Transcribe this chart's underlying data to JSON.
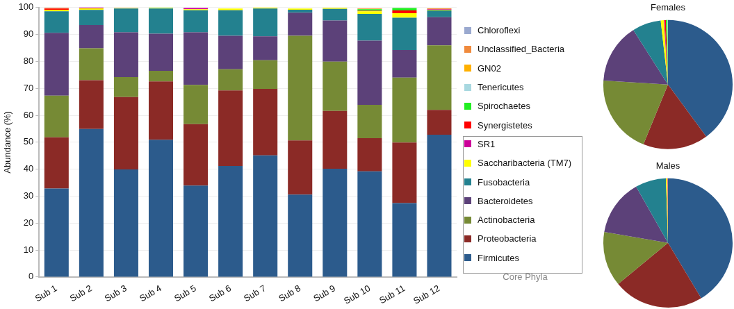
{
  "chart_data": [
    {
      "type": "bar",
      "stacked": true,
      "ylabel": "Abundance (%)",
      "legend_title": "Core Phyla",
      "legend": "right",
      "grid": "y",
      "ylim": [
        0,
        100
      ],
      "yticks": [
        0,
        10,
        20,
        30,
        40,
        50,
        60,
        70,
        80,
        90,
        100
      ],
      "categories": [
        "Sub 1",
        "Sub 2",
        "Sub 3",
        "Sub 4",
        "Sub 5",
        "Sub 6",
        "Sub 7",
        "Sub 8",
        "Sub 9",
        "Sub 10",
        "Sub 11",
        "Sub 12"
      ],
      "series": [
        {
          "name": "Firmicutes",
          "color": "#2c5b8c",
          "values": [
            32.8,
            54.9,
            39.9,
            50.9,
            33.9,
            41.2,
            45.1,
            30.6,
            40.2,
            39.2,
            27.4,
            52.8
          ]
        },
        {
          "name": "Proteobacteria",
          "color": "#8b2a26",
          "values": [
            19.0,
            18.1,
            26.9,
            21.7,
            22.8,
            28.0,
            24.7,
            20.1,
            21.4,
            12.3,
            22.5,
            9.2
          ]
        },
        {
          "name": "Actinobacteria",
          "color": "#768a35",
          "values": [
            15.5,
            11.9,
            7.4,
            3.9,
            14.6,
            7.9,
            10.6,
            38.8,
            18.3,
            12.4,
            24.1,
            24.0
          ]
        },
        {
          "name": "Bacteroidetes",
          "color": "#5c4179",
          "values": [
            23.3,
            8.6,
            16.6,
            13.8,
            19.5,
            12.4,
            8.9,
            8.6,
            15.3,
            23.8,
            10.2,
            10.4
          ]
        },
        {
          "name": "Fusobacteria",
          "color": "#23818f",
          "values": [
            8.0,
            5.6,
            8.8,
            9.3,
            8.2,
            9.5,
            10.3,
            1.1,
            4.3,
            9.9,
            12.0,
            2.5
          ]
        },
        {
          "name": "Saccharibacteria (TM7)",
          "color": "#ffff00",
          "values": [
            0.6,
            0.6,
            0.2,
            0.2,
            0.4,
            0.6,
            0.4,
            0.4,
            0.4,
            1.0,
            1.7,
            0.3
          ]
        },
        {
          "name": "SR1",
          "color": "#cc0099",
          "values": [
            0,
            0.3,
            0.1,
            0,
            0.4,
            0,
            0,
            0,
            0,
            0,
            0,
            0.2
          ]
        },
        {
          "name": "Synergistetes",
          "color": "#ff0000",
          "values": [
            0.4,
            0,
            0,
            0,
            0,
            0,
            0,
            null,
            0,
            0.2,
            1.0,
            0
          ]
        },
        {
          "name": "Spirochaetes",
          "color": "#22ee22",
          "values": [
            0,
            0,
            0,
            0.2,
            0,
            0,
            0,
            0,
            0,
            0.6,
            0.9,
            0
          ]
        },
        {
          "name": "Tenericutes",
          "color": "#a8d8e0",
          "values": [
            0,
            0,
            0,
            0,
            0,
            null,
            0,
            0,
            0,
            0,
            0,
            0
          ]
        },
        {
          "name": "GN02",
          "color": "#ffb000",
          "values": [
            0,
            0,
            0,
            0,
            0,
            0,
            0,
            0,
            0,
            0.1,
            0,
            0
          ]
        },
        {
          "name": "Unclassified_Bacteria",
          "color": "#f08a3c",
          "values": [
            0.3,
            0,
            0,
            0,
            0,
            0,
            0,
            0,
            0,
            0.2,
            0,
            0.3
          ]
        },
        {
          "name": "Chloroflexi",
          "color": "#9aa9cf",
          "values": [
            0,
            0,
            null,
            0,
            0,
            0,
            0,
            0,
            0,
            0,
            0,
            0
          ]
        }
      ]
    },
    {
      "type": "pie",
      "title": "Females",
      "categories": [
        null,
        null,
        null,
        null,
        null,
        null,
        null,
        null,
        null,
        null
      ],
      "values": [
        39.9,
        16.3,
        19.8,
        15.0,
        7.2,
        0.8,
        0.2,
        0.3,
        0.4,
        0.1
      ],
      "colors": [
        "#2c5b8c",
        "#8b2a26",
        "#768a35",
        "#5c4179",
        "#23818f",
        "#ffff00",
        "#cc0099",
        "#ff0000",
        "#22ee22",
        "#a8d8e0"
      ]
    },
    {
      "type": "pie",
      "title": "Males",
      "categories": [
        null,
        null,
        null,
        null,
        null,
        null,
        null
      ],
      "values": [
        41.4,
        22.6,
        13.7,
        14.1,
        7.7,
        0.4,
        0.1
      ],
      "colors": [
        "#2c5b8c",
        "#8b2a26",
        "#768a35",
        "#5c4179",
        "#23818f",
        "#ffff00",
        "#cc0099"
      ]
    }
  ]
}
